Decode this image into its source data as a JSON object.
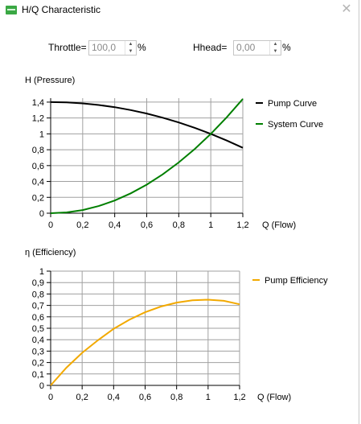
{
  "window": {
    "title": "H/Q Characteristic",
    "close_glyph": "✕",
    "icon": "app-icon"
  },
  "form": {
    "throttle_label": "Throttle=",
    "throttle_value": "100,0",
    "throttle_unit": "%",
    "hhead_label": "Hhead=",
    "hhead_value": "0,00",
    "hhead_unit": "%"
  },
  "chart_data": [
    {
      "type": "line",
      "ylabel": "H (Pressure)",
      "xlabel": "Q (Flow)",
      "xlim": [
        0,
        1.2
      ],
      "ylim": [
        0,
        1.45
      ],
      "xticks": [
        0,
        0.2,
        0.4,
        0.6,
        0.8,
        1,
        1.2
      ],
      "xtick_labels": [
        "0",
        "0,2",
        "0,4",
        "0,6",
        "0,8",
        "1",
        "1,2"
      ],
      "yticks": [
        0,
        0.2,
        0.4,
        0.6,
        0.8,
        1,
        1.2,
        1.4
      ],
      "ytick_labels": [
        "0",
        "0,2",
        "0,4",
        "0,6",
        "0,8",
        "1",
        "1,2",
        "1,4"
      ],
      "grid": true,
      "legend_position": "right",
      "series": [
        {
          "name": "Pump Curve",
          "color": "#000000",
          "x": [
            0,
            0.1,
            0.2,
            0.3,
            0.4,
            0.5,
            0.6,
            0.7,
            0.8,
            0.9,
            1.0,
            1.1,
            1.2
          ],
          "y": [
            1.4,
            1.396,
            1.384,
            1.364,
            1.336,
            1.3,
            1.256,
            1.204,
            1.144,
            1.076,
            1.0,
            0.916,
            0.824
          ]
        },
        {
          "name": "System Curve",
          "color": "#007f00",
          "x": [
            0,
            0.1,
            0.2,
            0.3,
            0.4,
            0.5,
            0.6,
            0.7,
            0.8,
            0.9,
            1.0,
            1.1,
            1.2
          ],
          "y": [
            0,
            0.01,
            0.04,
            0.09,
            0.16,
            0.25,
            0.36,
            0.49,
            0.64,
            0.81,
            1.0,
            1.21,
            1.44
          ]
        }
      ]
    },
    {
      "type": "line",
      "ylabel": "η (Efficiency)",
      "xlabel": "Q (Flow)",
      "xlim": [
        0,
        1.2
      ],
      "ylim": [
        0,
        1
      ],
      "xticks": [
        0,
        0.2,
        0.4,
        0.6,
        0.8,
        1,
        1.2
      ],
      "xtick_labels": [
        "0",
        "0,2",
        "0,4",
        "0,6",
        "0,8",
        "1",
        "1,2"
      ],
      "yticks": [
        0,
        0.1,
        0.2,
        0.3,
        0.4,
        0.5,
        0.6,
        0.7,
        0.8,
        0.9,
        1
      ],
      "ytick_labels": [
        "0",
        "0,1",
        "0,2",
        "0,3",
        "0,4",
        "0,5",
        "0,6",
        "0,7",
        "0,8",
        "0,9",
        "1"
      ],
      "grid": true,
      "legend_position": "right",
      "series": [
        {
          "name": "Pump Efficiency",
          "color": "#f2a900",
          "x": [
            0,
            0.1,
            0.2,
            0.3,
            0.4,
            0.5,
            0.6,
            0.7,
            0.8,
            0.9,
            1.0,
            1.1,
            1.2
          ],
          "y": [
            0,
            0.155,
            0.285,
            0.395,
            0.495,
            0.575,
            0.64,
            0.69,
            0.725,
            0.745,
            0.75,
            0.74,
            0.71
          ]
        }
      ]
    }
  ]
}
